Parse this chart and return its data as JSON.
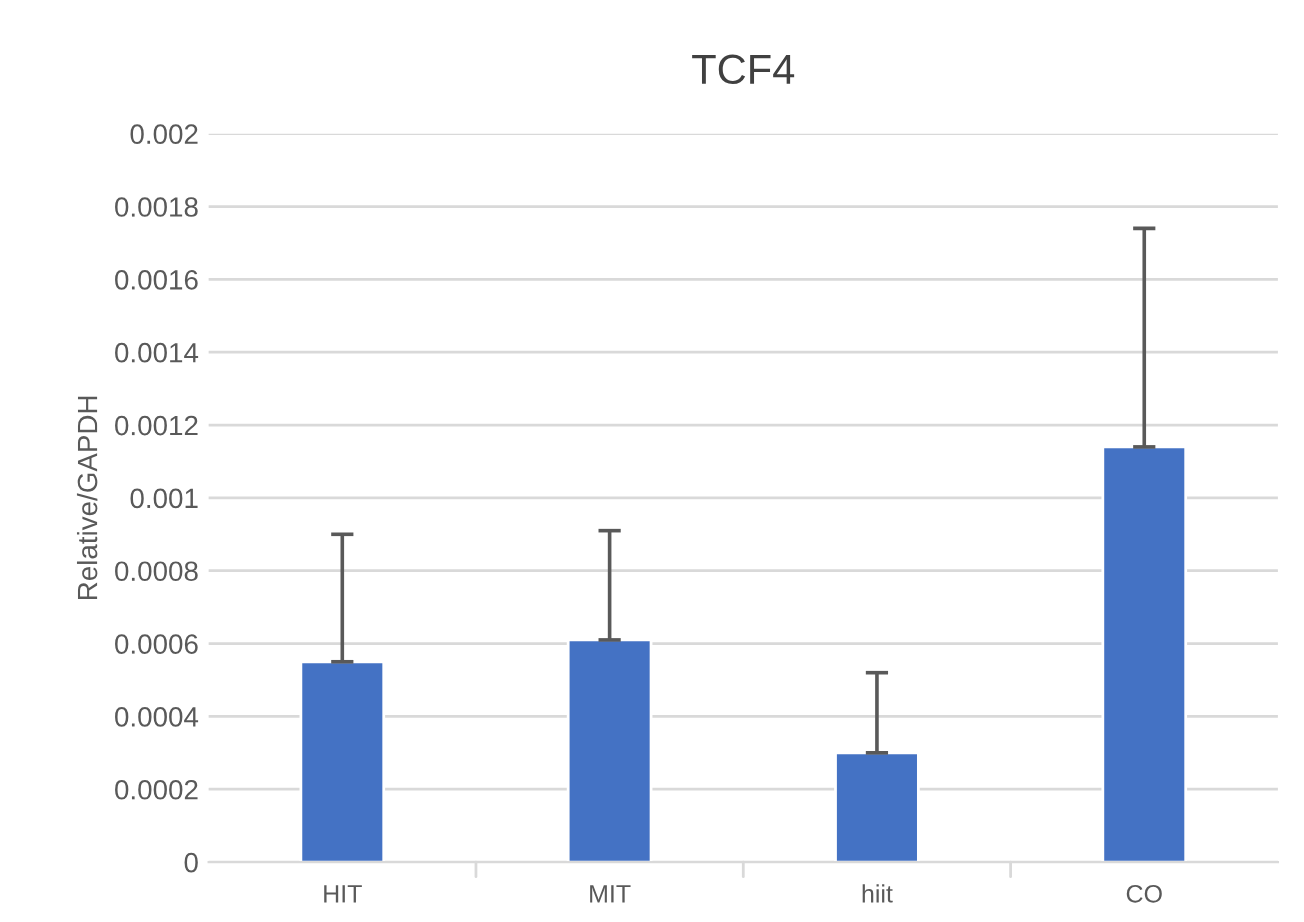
{
  "chart_data": {
    "type": "bar",
    "title": "TCF4",
    "ylabel": "Relative/GAPDH",
    "categories": [
      "HIT",
      "MIT",
      "hiit",
      "CO"
    ],
    "values": [
      0.00055,
      0.00061,
      0.0003,
      0.00114
    ],
    "errors": [
      [
        0.00055,
        0.0009
      ],
      [
        0.00061,
        0.00091
      ],
      [
        0.0003,
        0.00052
      ],
      [
        0.00114,
        0.00174
      ]
    ],
    "color": "#4472c4",
    "ylim": [
      0,
      0.002
    ],
    "yticks": [
      0,
      0.0002,
      0.0004,
      0.0006,
      0.0008,
      0.001,
      0.0012,
      0.0014,
      0.0016,
      0.0018,
      0.002
    ],
    "grid": "y",
    "legend": false
  }
}
